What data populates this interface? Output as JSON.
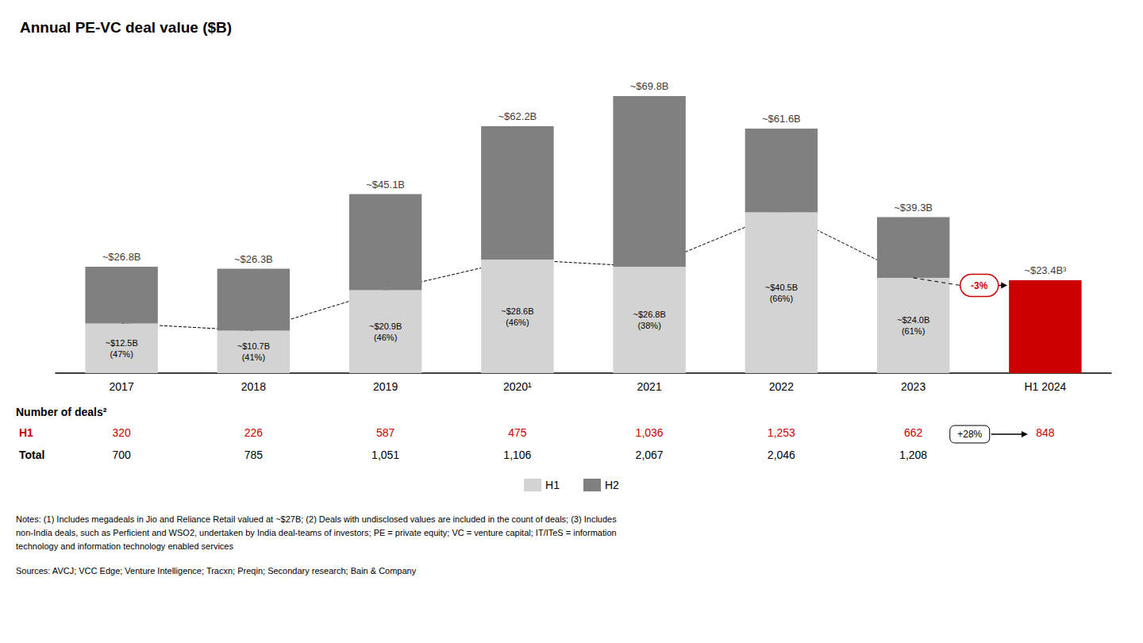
{
  "chart_data": {
    "type": "bar",
    "title": "Annual PE-VC deal value ($B)",
    "categories": [
      "2017",
      "2018",
      "2019",
      "2020¹",
      "2021",
      "2022",
      "2023",
      "H1 2024"
    ],
    "stacked": true,
    "data_labels": true,
    "series": [
      {
        "name": "H1",
        "color": "#d3d3d3",
        "colors": [
          "#d3d3d3",
          "#d3d3d3",
          "#d3d3d3",
          "#d3d3d3",
          "#d3d3d3",
          "#d3d3d3",
          "#d3d3d3",
          "#cc0000"
        ],
        "values": [
          12.5,
          10.7,
          20.9,
          28.6,
          26.8,
          40.5,
          24.0,
          23.4
        ],
        "value_labels": [
          "~$12.5B\n(47%)",
          "~$10.7B\n(41%)",
          "~$20.9B\n(46%)",
          "~$28.6B\n(46%)",
          "~$26.8B\n(38%)",
          "~$40.5B\n(66%)",
          "~$24.0B\n(61%)",
          null
        ]
      },
      {
        "name": "H2",
        "color": "#808080",
        "values": [
          14.3,
          15.6,
          24.2,
          33.6,
          43.0,
          21.1,
          15.3,
          0
        ]
      }
    ],
    "totals": [
      26.8,
      26.3,
      45.1,
      62.2,
      69.8,
      61.6,
      39.3,
      23.4
    ],
    "total_labels": [
      "~$26.8B",
      "~$26.3B",
      "~$45.1B",
      "~$62.2B",
      "~$69.8B",
      "~$61.6B",
      "~$39.3B",
      "~$23.4B³"
    ],
    "lines": [
      {
        "series": "H1",
        "from": "2017",
        "to": "2023",
        "line_style": "dashed",
        "color": "#000000"
      }
    ],
    "annotations": [
      {
        "text": "-3%",
        "series": "H1",
        "from": "2023",
        "to": "H1 2024",
        "color": "#cc0000"
      }
    ],
    "table": {
      "title": "Number of deals²",
      "rows": [
        {
          "name": "H1",
          "color": "#cc0000",
          "values": [
            320,
            226,
            587,
            475,
            1036,
            1253,
            662,
            848
          ],
          "value_labels": [
            "320",
            "226",
            "587",
            "475",
            "1,036",
            "1,253",
            "662",
            "848"
          ]
        },
        {
          "name": "Total",
          "color": "#000000",
          "values": [
            700,
            785,
            1051,
            1106,
            2067,
            2046,
            1208,
            null
          ],
          "value_labels": [
            "700",
            "785",
            "1,051",
            "1,106",
            "2,067",
            "2,046",
            "1,208",
            null
          ]
        }
      ],
      "annotations": [
        {
          "text": "+28%",
          "row": "H1",
          "from": "2023",
          "to": "H1 2024"
        }
      ]
    },
    "ylim": [
      0,
      80
    ],
    "tick_labels": "x",
    "grid": false,
    "legend": "bottom",
    "notes": [
      "Notes: (1) Includes megadeals in Jio and Reliance Retail valued at ~$27B; (2) Deals with undisclosed values are included in the count of deals; (3) Includes",
      "non-India deals, such as Perficient and WSO2, undertaken by India deal-teams of investors; PE = private equity; VC = venture capital; IT/ITeS = information",
      "technology and information technology enabled services"
    ],
    "sources": "Sources: AVCJ; VCC Edge; Venture Intelligence; Tracxn; Preqin; Secondary research; Bain & Company"
  }
}
